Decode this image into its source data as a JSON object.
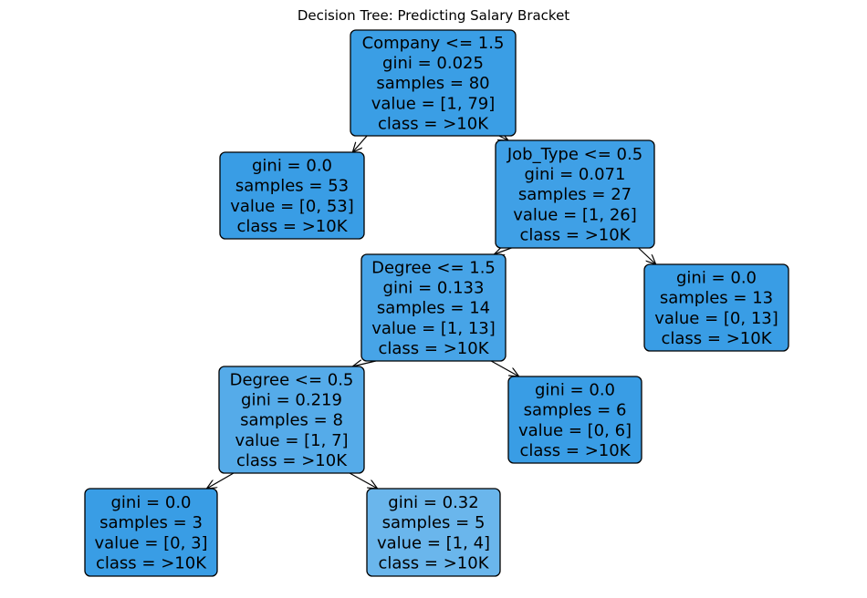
{
  "title": "Decision Tree: Predicting Salary Bracket",
  "nodes": [
    {
      "id": "n0",
      "fill": "#3a9ee5",
      "lines": [
        "Company <= 1.5",
        "gini = 0.025",
        "samples = 80",
        "value = [1, 79]",
        "class = >10K"
      ]
    },
    {
      "id": "n1",
      "fill": "#399de5",
      "lines": [
        "gini = 0.0",
        "samples = 53",
        "value = [0, 53]",
        "class = >10K"
      ]
    },
    {
      "id": "n2",
      "fill": "#3fa0e6",
      "lines": [
        "Job_Type <= 0.5",
        "gini = 0.071",
        "samples = 27",
        "value = [1, 26]",
        "class = >10K"
      ]
    },
    {
      "id": "n3",
      "fill": "#47a4e7",
      "lines": [
        "Degree <= 1.5",
        "gini = 0.133",
        "samples = 14",
        "value = [1, 13]",
        "class = >10K"
      ]
    },
    {
      "id": "n4",
      "fill": "#399de5",
      "lines": [
        "gini = 0.0",
        "samples = 13",
        "value = [0, 13]",
        "class = >10K"
      ]
    },
    {
      "id": "n5",
      "fill": "#55abe9",
      "lines": [
        "Degree <= 0.5",
        "gini = 0.219",
        "samples = 8",
        "value = [1, 7]",
        "class = >10K"
      ]
    },
    {
      "id": "n6",
      "fill": "#399de5",
      "lines": [
        "gini = 0.0",
        "samples = 6",
        "value = [0, 6]",
        "class = >10K"
      ]
    },
    {
      "id": "n7",
      "fill": "#399de5",
      "lines": [
        "gini = 0.0",
        "samples = 3",
        "value = [0, 3]",
        "class = >10K"
      ]
    },
    {
      "id": "n8",
      "fill": "#6ab6ec",
      "lines": [
        "gini = 0.32",
        "samples = 5",
        "value = [1, 4]",
        "class = >10K"
      ]
    }
  ],
  "edges": [
    {
      "from": "n0",
      "to": "n1"
    },
    {
      "from": "n0",
      "to": "n2"
    },
    {
      "from": "n2",
      "to": "n3"
    },
    {
      "from": "n2",
      "to": "n4"
    },
    {
      "from": "n3",
      "to": "n5"
    },
    {
      "from": "n3",
      "to": "n6"
    },
    {
      "from": "n5",
      "to": "n7"
    },
    {
      "from": "n5",
      "to": "n8"
    }
  ]
}
